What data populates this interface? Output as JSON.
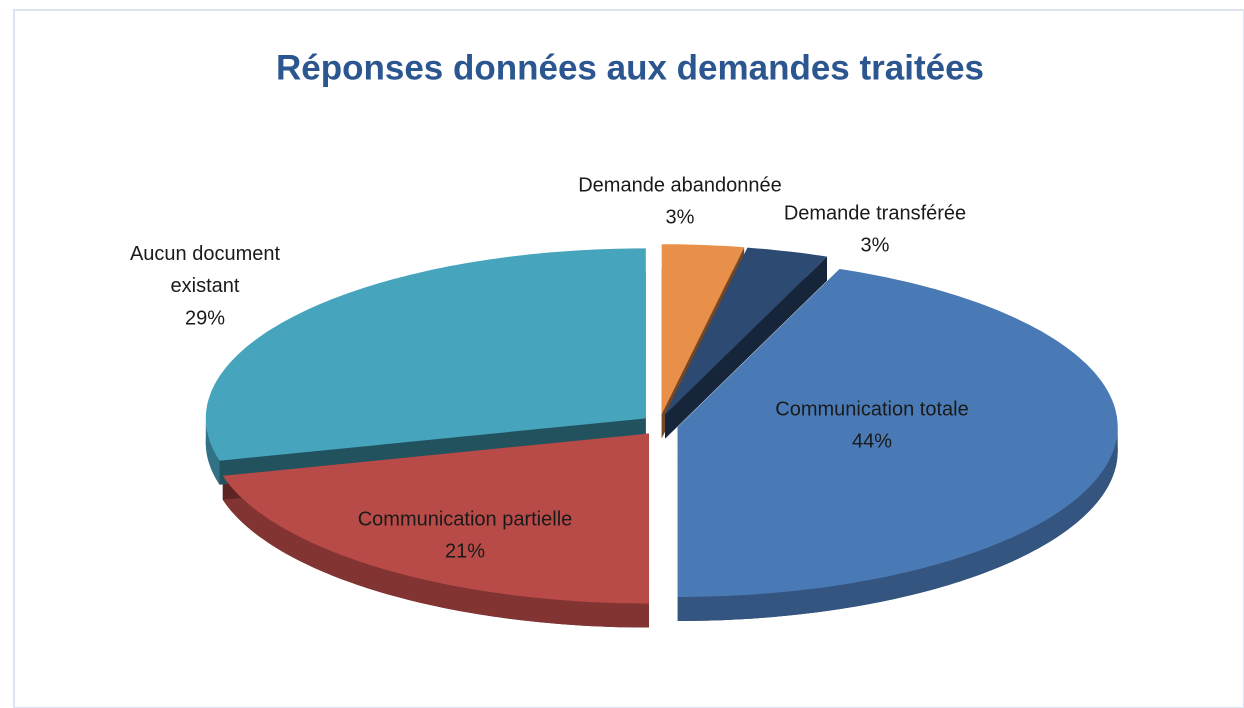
{
  "chart_data": {
    "type": "pie",
    "title": "Réponses données aux demandes traitées",
    "categories": [
      "Demande abandonnée",
      "Demande transférée",
      "Communication totale",
      "Communication partielle",
      "Aucun document existant"
    ],
    "values": [
      3,
      3,
      44,
      21,
      29
    ],
    "value_labels": [
      "3%",
      "3%",
      "44%",
      "21%",
      "29%"
    ],
    "colors": [
      "#e8904a",
      "#2c4a72",
      "#4a7ab5",
      "#b84a47",
      "#46a4bd"
    ]
  }
}
